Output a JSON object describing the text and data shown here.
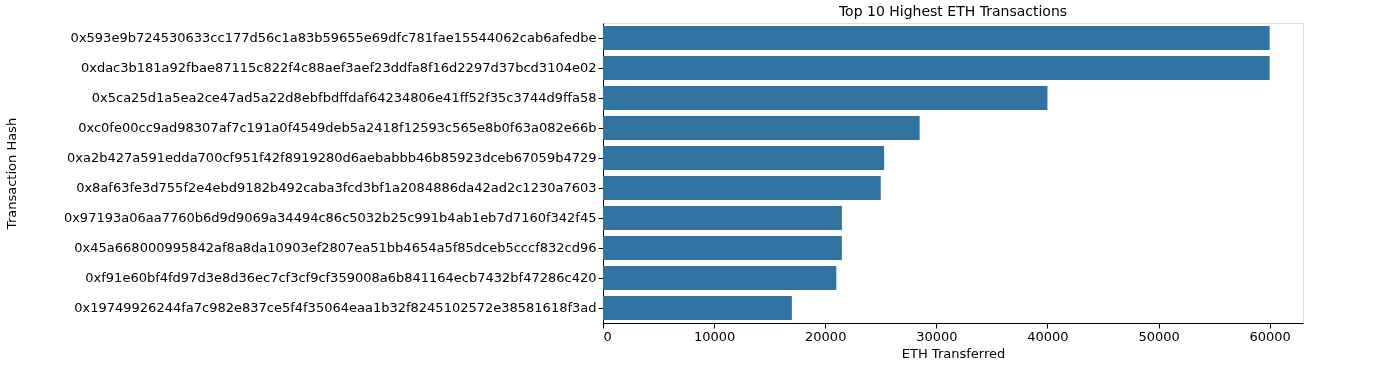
{
  "chart_data": {
    "type": "bar",
    "orientation": "horizontal",
    "title": "Top 10 Highest ETH Transactions",
    "xlabel": "ETH Transferred",
    "ylabel": "Transaction Hash",
    "categories": [
      "0x593e9b724530633cc177d56c1a83b59655e69dfc781fae15544062cab6afedbe",
      "0xdac3b181a92fbae87115c822f4c88aef3aef23ddfa8f16d2297d37bcd3104e02",
      "0x5ca25d1a5ea2ce47ad5a22d8ebfbdffdaf64234806e41ff52f35c3744d9ffa58",
      "0xc0fe00cc9ad98307af7c191a0f4549deb5a2418f12593c565e8b0f63a082e66b",
      "0xa2b427a591edda700cf951f42f8919280d6aebabbb46b85923dceb67059b4729",
      "0x8af63fe3d755f2e4ebd9182b492caba3fcd3bf1a2084886da42ad2c1230a7603",
      "0x97193a06aa7760b6d9d9069a34494c86c5032b25c991b4ab1eb7d7160f342f45",
      "0x45a668000995842af8a8da10903ef2807ea51bb4654a5f85dceb5cccf832cd96",
      "0xf91e60bf4fd97d3e8d36ec7cf3cf9cf359008a6b841164ecb7432bf47286c420",
      "0x19749926244fa7c982e837ce5f4f35064eaa1b32f8245102572e38581618f3ad"
    ],
    "values": [
      60000,
      60000,
      40000,
      28500,
      25300,
      25000,
      21500,
      21500,
      21000,
      17000
    ],
    "color": "#3274a1",
    "xlim": [
      0,
      63000
    ],
    "xticks": [
      0,
      10000,
      20000,
      30000,
      40000,
      50000,
      60000
    ],
    "grid": false
  }
}
